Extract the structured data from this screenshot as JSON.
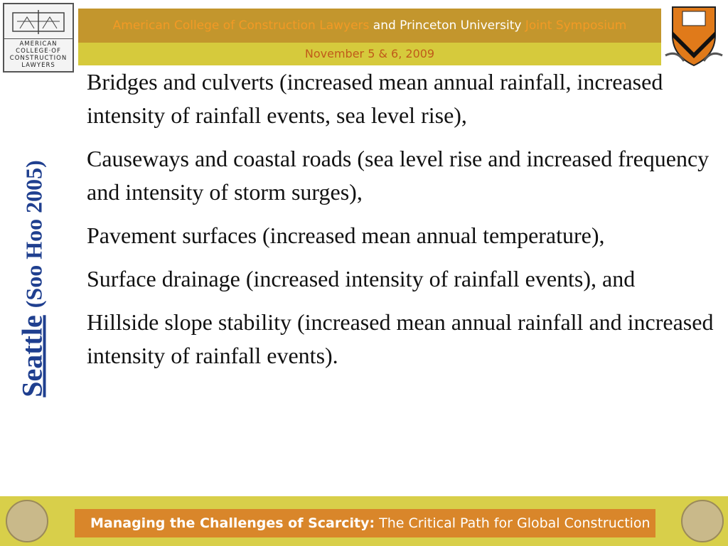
{
  "header": {
    "logo_lines": [
      "AMERICAN",
      "COLLEGE·OF",
      "CONSTRUCTION",
      "LAWYERS"
    ],
    "title_org": "American College of Construction Lawyers",
    "title_and": "and Princeton University",
    "title_event": "Joint Symposium",
    "date": "November 5 & 6, 2009"
  },
  "side_title": {
    "city": "Seattle",
    "reference": "(Soo Hoo 2005)"
  },
  "items": [
    "Bridges and culverts (increased mean annual rainfall, increased intensity of rainfall events, sea level rise),",
    "Causeways and coastal roads (sea level rise and increased frequency and intensity of storm surges),",
    "Pavement surfaces (increased mean annual temperature),",
    "Surface drainage (increased intensity of rainfall events), and",
    "Hillside slope stability (increased mean annual rainfall and increased intensity of rainfall events)."
  ],
  "footer": {
    "title_bold": "Managing the Challenges of Scarcity:",
    "title_rest": "The Critical Path for Global Construction"
  }
}
